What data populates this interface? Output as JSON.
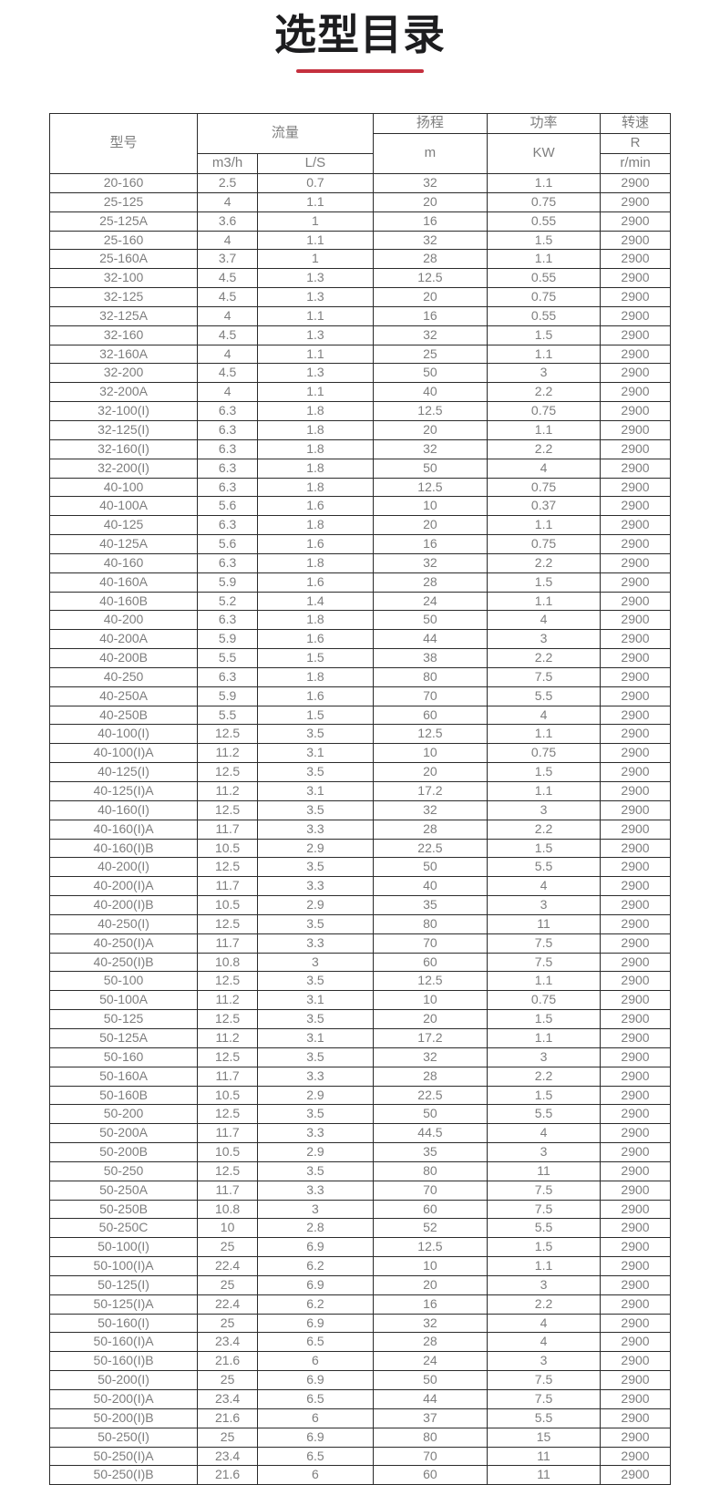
{
  "page": {
    "title": "选型目录",
    "accent_color": "#c5303e"
  },
  "table": {
    "headers": {
      "model": "型号",
      "flow": "流量",
      "flow_unit_m3h": "m3/h",
      "flow_unit_ls": "L/S",
      "head": "扬程",
      "head_unit": "m",
      "power": "功率",
      "power_unit": "KW",
      "speed": "转速",
      "speed_unit_r": "R",
      "speed_unit_rmin": "r/min"
    },
    "rows": [
      [
        "20-160",
        "2.5",
        "0.7",
        "32",
        "1.1",
        "2900"
      ],
      [
        "25-125",
        "4",
        "1.1",
        "20",
        "0.75",
        "2900"
      ],
      [
        "25-125A",
        "3.6",
        "1",
        "16",
        "0.55",
        "2900"
      ],
      [
        "25-160",
        "4",
        "1.1",
        "32",
        "1.5",
        "2900"
      ],
      [
        "25-160A",
        "3.7",
        "1",
        "28",
        "1.1",
        "2900"
      ],
      [
        "32-100",
        "4.5",
        "1.3",
        "12.5",
        "0.55",
        "2900"
      ],
      [
        "32-125",
        "4.5",
        "1.3",
        "20",
        "0.75",
        "2900"
      ],
      [
        "32-125A",
        "4",
        "1.1",
        "16",
        "0.55",
        "2900"
      ],
      [
        "32-160",
        "4.5",
        "1.3",
        "32",
        "1.5",
        "2900"
      ],
      [
        "32-160A",
        "4",
        "1.1",
        "25",
        "1.1",
        "2900"
      ],
      [
        "32-200",
        "4.5",
        "1.3",
        "50",
        "3",
        "2900"
      ],
      [
        "32-200A",
        "4",
        "1.1",
        "40",
        "2.2",
        "2900"
      ],
      [
        "32-100(I)",
        "6.3",
        "1.8",
        "12.5",
        "0.75",
        "2900"
      ],
      [
        "32-125(I)",
        "6.3",
        "1.8",
        "20",
        "1.1",
        "2900"
      ],
      [
        "32-160(I)",
        "6.3",
        "1.8",
        "32",
        "2.2",
        "2900"
      ],
      [
        "32-200(I)",
        "6.3",
        "1.8",
        "50",
        "4",
        "2900"
      ],
      [
        "40-100",
        "6.3",
        "1.8",
        "12.5",
        "0.75",
        "2900"
      ],
      [
        "40-100A",
        "5.6",
        "1.6",
        "10",
        "0.37",
        "2900"
      ],
      [
        "40-125",
        "6.3",
        "1.8",
        "20",
        "1.1",
        "2900"
      ],
      [
        "40-125A",
        "5.6",
        "1.6",
        "16",
        "0.75",
        "2900"
      ],
      [
        "40-160",
        "6.3",
        "1.8",
        "32",
        "2.2",
        "2900"
      ],
      [
        "40-160A",
        "5.9",
        "1.6",
        "28",
        "1.5",
        "2900"
      ],
      [
        "40-160B",
        "5.2",
        "1.4",
        "24",
        "1.1",
        "2900"
      ],
      [
        "40-200",
        "6.3",
        "1.8",
        "50",
        "4",
        "2900"
      ],
      [
        "40-200A",
        "5.9",
        "1.6",
        "44",
        "3",
        "2900"
      ],
      [
        "40-200B",
        "5.5",
        "1.5",
        "38",
        "2.2",
        "2900"
      ],
      [
        "40-250",
        "6.3",
        "1.8",
        "80",
        "7.5",
        "2900"
      ],
      [
        "40-250A",
        "5.9",
        "1.6",
        "70",
        "5.5",
        "2900"
      ],
      [
        "40-250B",
        "5.5",
        "1.5",
        "60",
        "4",
        "2900"
      ],
      [
        "40-100(I)",
        "12.5",
        "3.5",
        "12.5",
        "1.1",
        "2900"
      ],
      [
        "40-100(I)A",
        "11.2",
        "3.1",
        "10",
        "0.75",
        "2900"
      ],
      [
        "40-125(I)",
        "12.5",
        "3.5",
        "20",
        "1.5",
        "2900"
      ],
      [
        "40-125(I)A",
        "11.2",
        "3.1",
        "17.2",
        "1.1",
        "2900"
      ],
      [
        "40-160(I)",
        "12.5",
        "3.5",
        "32",
        "3",
        "2900"
      ],
      [
        "40-160(I)A",
        "11.7",
        "3.3",
        "28",
        "2.2",
        "2900"
      ],
      [
        "40-160(I)B",
        "10.5",
        "2.9",
        "22.5",
        "1.5",
        "2900"
      ],
      [
        "40-200(I)",
        "12.5",
        "3.5",
        "50",
        "5.5",
        "2900"
      ],
      [
        "40-200(I)A",
        "11.7",
        "3.3",
        "40",
        "4",
        "2900"
      ],
      [
        "40-200(I)B",
        "10.5",
        "2.9",
        "35",
        "3",
        "2900"
      ],
      [
        "40-250(I)",
        "12.5",
        "3.5",
        "80",
        "11",
        "2900"
      ],
      [
        "40-250(I)A",
        "11.7",
        "3.3",
        "70",
        "7.5",
        "2900"
      ],
      [
        "40-250(I)B",
        "10.8",
        "3",
        "60",
        "7.5",
        "2900"
      ],
      [
        "50-100",
        "12.5",
        "3.5",
        "12.5",
        "1.1",
        "2900"
      ],
      [
        "50-100A",
        "11.2",
        "3.1",
        "10",
        "0.75",
        "2900"
      ],
      [
        "50-125",
        "12.5",
        "3.5",
        "20",
        "1.5",
        "2900"
      ],
      [
        "50-125A",
        "11.2",
        "3.1",
        "17.2",
        "1.1",
        "2900"
      ],
      [
        "50-160",
        "12.5",
        "3.5",
        "32",
        "3",
        "2900"
      ],
      [
        "50-160A",
        "11.7",
        "3.3",
        "28",
        "2.2",
        "2900"
      ],
      [
        "50-160B",
        "10.5",
        "2.9",
        "22.5",
        "1.5",
        "2900"
      ],
      [
        "50-200",
        "12.5",
        "3.5",
        "50",
        "5.5",
        "2900"
      ],
      [
        "50-200A",
        "11.7",
        "3.3",
        "44.5",
        "4",
        "2900"
      ],
      [
        "50-200B",
        "10.5",
        "2.9",
        "35",
        "3",
        "2900"
      ],
      [
        "50-250",
        "12.5",
        "3.5",
        "80",
        "11",
        "2900"
      ],
      [
        "50-250A",
        "11.7",
        "3.3",
        "70",
        "7.5",
        "2900"
      ],
      [
        "50-250B",
        "10.8",
        "3",
        "60",
        "7.5",
        "2900"
      ],
      [
        "50-250C",
        "10",
        "2.8",
        "52",
        "5.5",
        "2900"
      ],
      [
        "50-100(I)",
        "25",
        "6.9",
        "12.5",
        "1.5",
        "2900"
      ],
      [
        "50-100(I)A",
        "22.4",
        "6.2",
        "10",
        "1.1",
        "2900"
      ],
      [
        "50-125(I)",
        "25",
        "6.9",
        "20",
        "3",
        "2900"
      ],
      [
        "50-125(I)A",
        "22.4",
        "6.2",
        "16",
        "2.2",
        "2900"
      ],
      [
        "50-160(I)",
        "25",
        "6.9",
        "32",
        "4",
        "2900"
      ],
      [
        "50-160(I)A",
        "23.4",
        "6.5",
        "28",
        "4",
        "2900"
      ],
      [
        "50-160(I)B",
        "21.6",
        "6",
        "24",
        "3",
        "2900"
      ],
      [
        "50-200(I)",
        "25",
        "6.9",
        "50",
        "7.5",
        "2900"
      ],
      [
        "50-200(I)A",
        "23.4",
        "6.5",
        "44",
        "7.5",
        "2900"
      ],
      [
        "50-200(I)B",
        "21.6",
        "6",
        "37",
        "5.5",
        "2900"
      ],
      [
        "50-250(I)",
        "25",
        "6.9",
        "80",
        "15",
        "2900"
      ],
      [
        "50-250(I)A",
        "23.4",
        "6.5",
        "70",
        "11",
        "2900"
      ],
      [
        "50-250(I)B",
        "21.6",
        "6",
        "60",
        "11",
        "2900"
      ]
    ]
  }
}
